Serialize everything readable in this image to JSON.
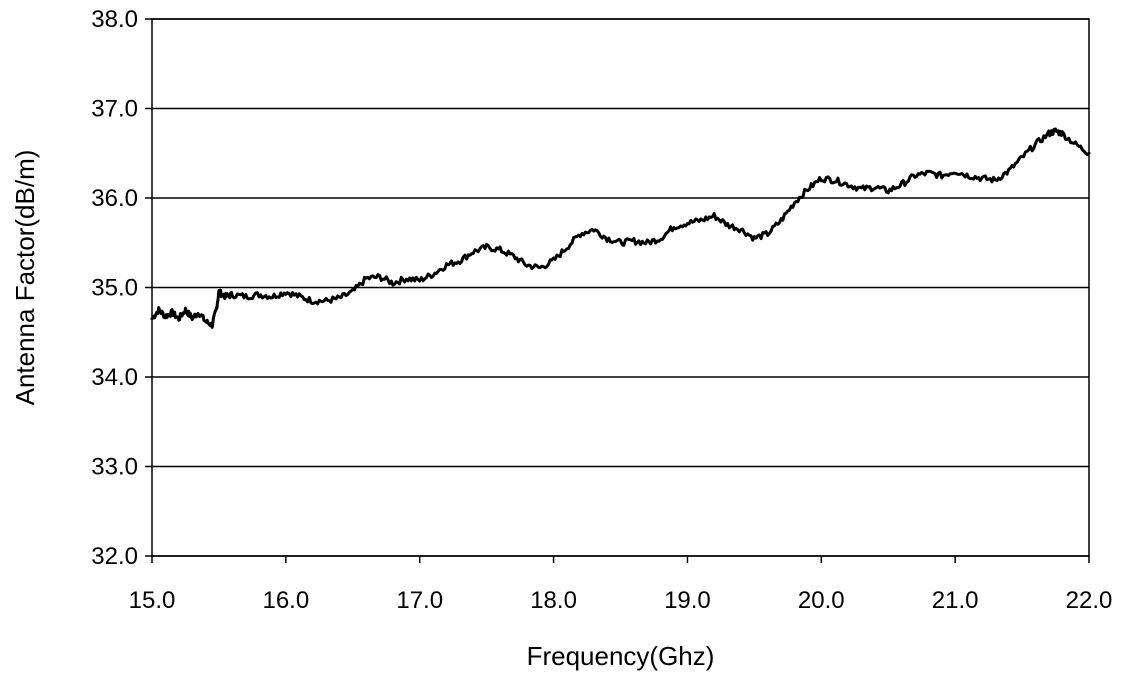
{
  "chart_data": {
    "type": "line",
    "title": "",
    "xlabel": "Frequency(Ghz)",
    "ylabel": "Antenna Factor(dB/m)",
    "xlim": [
      15.0,
      22.0
    ],
    "ylim": [
      32.0,
      38.0
    ],
    "xticks": [
      "15.0",
      "16.0",
      "17.0",
      "18.0",
      "19.0",
      "20.0",
      "21.0",
      "22.0"
    ],
    "yticks": [
      "32.0",
      "33.0",
      "34.0",
      "35.0",
      "36.0",
      "37.0",
      "38.0"
    ],
    "grid": "horizontal",
    "legend": "none",
    "line_color": "#000000",
    "series": [
      {
        "x": [
          15.0,
          15.05,
          15.1,
          15.15,
          15.2,
          15.25,
          15.3,
          15.35,
          15.4,
          15.45,
          15.48,
          15.5,
          15.55,
          15.6,
          15.7,
          15.8,
          15.9,
          16.0,
          16.1,
          16.2,
          16.3,
          16.4,
          16.5,
          16.6,
          16.7,
          16.8,
          16.9,
          17.0,
          17.1,
          17.2,
          17.3,
          17.4,
          17.5,
          17.6,
          17.7,
          17.8,
          17.9,
          18.0,
          18.1,
          18.2,
          18.3,
          18.4,
          18.5,
          18.6,
          18.7,
          18.8,
          18.9,
          19.0,
          19.1,
          19.2,
          19.3,
          19.4,
          19.5,
          19.6,
          19.7,
          19.8,
          19.9,
          20.0,
          20.1,
          20.2,
          20.3,
          20.4,
          20.5,
          20.6,
          20.7,
          20.8,
          20.9,
          21.0,
          21.1,
          21.2,
          21.3,
          21.4,
          21.5,
          21.6,
          21.7,
          21.75,
          21.8,
          21.9,
          22.0
        ],
        "values": [
          34.65,
          34.75,
          34.68,
          34.72,
          34.65,
          34.75,
          34.66,
          34.72,
          34.62,
          34.58,
          34.75,
          34.95,
          34.9,
          34.92,
          34.9,
          34.92,
          34.9,
          34.95,
          34.9,
          34.85,
          34.85,
          34.88,
          34.95,
          35.1,
          35.12,
          35.05,
          35.1,
          35.08,
          35.15,
          35.25,
          35.3,
          35.4,
          35.45,
          35.42,
          35.35,
          35.25,
          35.22,
          35.3,
          35.45,
          35.6,
          35.65,
          35.55,
          35.5,
          35.52,
          35.5,
          35.55,
          35.68,
          35.72,
          35.75,
          35.8,
          35.7,
          35.65,
          35.55,
          35.6,
          35.75,
          35.95,
          36.1,
          36.22,
          36.2,
          36.15,
          36.1,
          36.12,
          36.08,
          36.15,
          36.25,
          36.28,
          36.25,
          36.3,
          36.25,
          36.22,
          36.2,
          36.3,
          36.45,
          36.6,
          36.72,
          36.75,
          36.72,
          36.6,
          36.5
        ]
      }
    ]
  }
}
